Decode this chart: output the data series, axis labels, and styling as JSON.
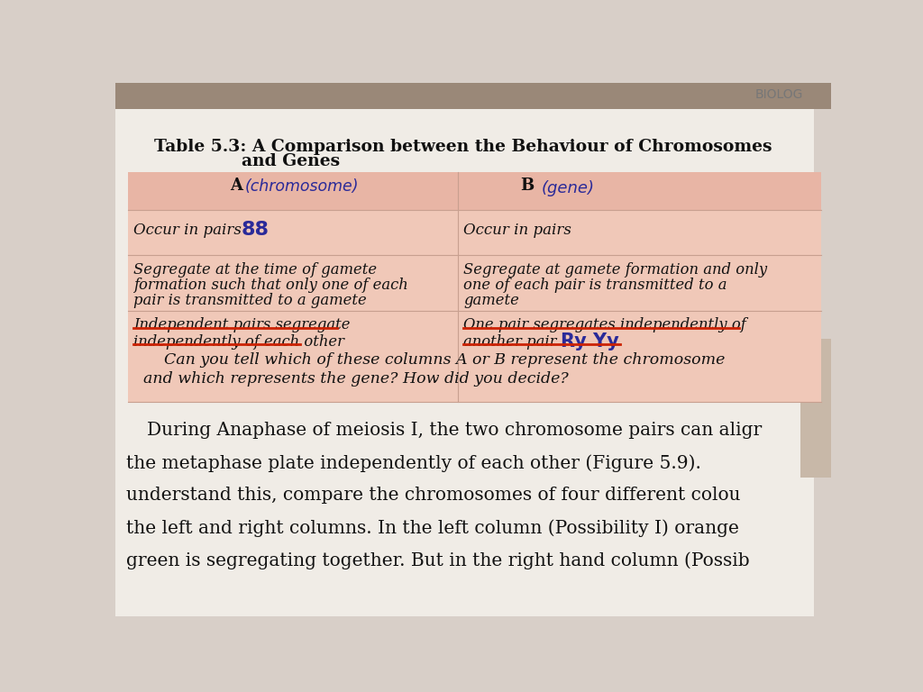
{
  "page_bg_top": "#d8cfc8",
  "page_bg_white": "#f0ece6",
  "table_bg": "#f0c8b8",
  "header_row_bg": "#e8b5a5",
  "title_line1": "Table 5.3: A Comparison between the Behaviour of Chromosomes",
  "title_line2": "and Genes",
  "header_a": "A",
  "header_a_handwritten": "(chromosome)",
  "header_b": "B",
  "header_b_handwritten": "(gene)",
  "row1_a": "Occur in pairs",
  "row1_a_hw": "88",
  "row1_b": "Occur in pairs",
  "row2_a_lines": [
    "Segregate at the time of gamete",
    "formation such that only one of each",
    "pair is transmitted to a gamete"
  ],
  "row2_b_lines": [
    "Segregate at gamete formation and only",
    "one of each pair is transmitted to a",
    "gamete"
  ],
  "row3_a_line1": "Independent pairs segregate",
  "row3_a_line2": "independently of each other",
  "row3_b_line1": "One pair segregates independently of",
  "row3_b_line2": "another pair",
  "row3_b_hw": "Ry Yy",
  "question_line1": "Can you tell which of these columns A or B represent the chromosome",
  "question_line2": "and which represents the gene? How did you decide?",
  "watermark_text": "BIOLOG",
  "para1": "During Anaphase of meiosis I, the two chromosome pairs can aligr",
  "para2": "the metaphase plate independently of each other (Figure 5.9).",
  "para3": "understand this, compare the chromosomes of four different colou",
  "para4": "the left and right columns. In the left column (Possibility I) orange",
  "para5": "green is segregating together. But in the right hand column (Possib",
  "underline_color": "#cc2200",
  "handwriting_color": "#2a2a99",
  "text_color": "#111111",
  "title_color": "#111111"
}
